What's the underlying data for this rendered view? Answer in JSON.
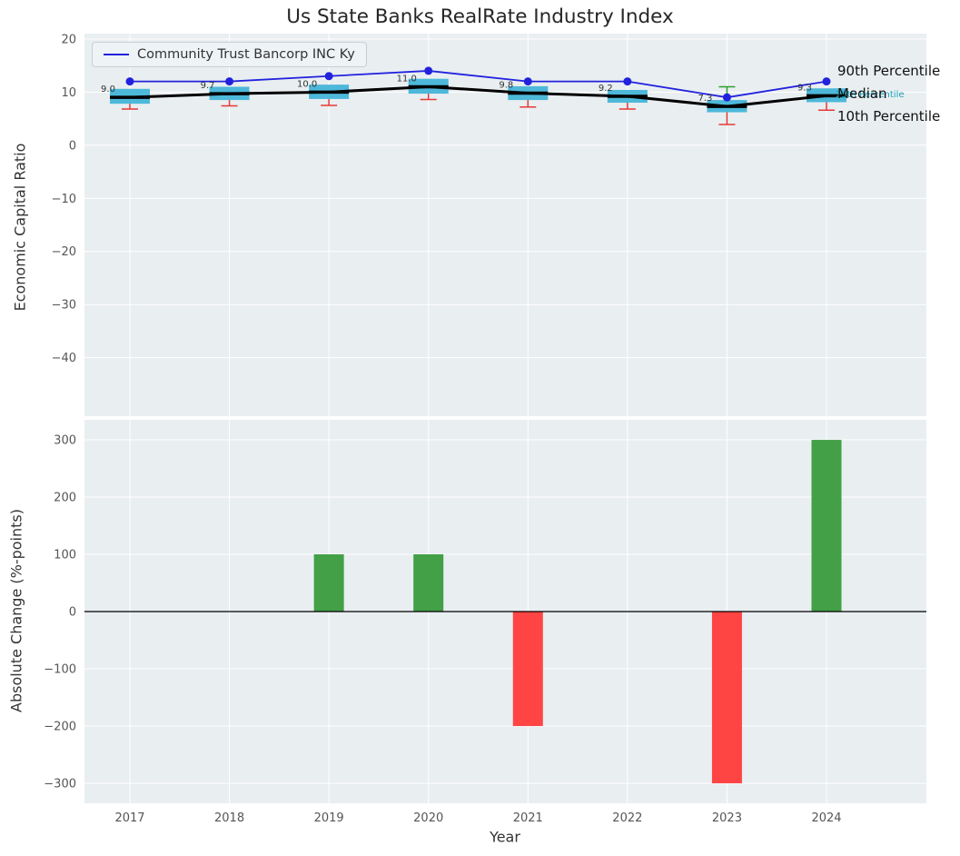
{
  "title": "Us State Banks RealRate Industry Index",
  "legend": {
    "company_label": "Community Trust Bancorp INC Ky"
  },
  "right_labels": {
    "p90": "90th Percentile",
    "p25": "25th Percentile",
    "median": "Median",
    "p10": "10th Percentile"
  },
  "colors": {
    "axes_bg": "#e9eef1",
    "grid": "#ffffff",
    "box_fill": "#4db8d9",
    "median_line": "#000000",
    "company_line": "#2222dd",
    "whisker_low": "#e53935",
    "whisker_high": "#2ca02c",
    "bar_positive": "#43a047",
    "bar_negative": "#ff4444",
    "p25_label": "#17a2b8",
    "tick_text": "#555555",
    "annotation_text": "#333333"
  },
  "chart_data": [
    {
      "type": "boxplot+line",
      "ylabel": "Economic Capital Ratio",
      "ylim": [
        -51,
        21
      ],
      "yticks": [
        20,
        10,
        0,
        -10,
        -20,
        -30,
        -40
      ],
      "grid": true,
      "legend_position": "upper left",
      "categories": [
        "2017",
        "2018",
        "2019",
        "2020",
        "2021",
        "2022",
        "2023",
        "2024"
      ],
      "series": [
        {
          "name": "Community Trust Bancorp INC Ky",
          "type": "line",
          "values": [
            12,
            12,
            13,
            14,
            12,
            12,
            9,
            12
          ]
        },
        {
          "name": "Median",
          "type": "line",
          "values": [
            9.0,
            9.7,
            10.0,
            11.0,
            9.8,
            9.2,
            7.3,
            9.3
          ]
        }
      ],
      "box": {
        "q1": [
          7.8,
          8.5,
          8.7,
          9.7,
          8.5,
          8.0,
          6.2,
          8.1
        ],
        "q3": [
          10.6,
          11.0,
          11.4,
          12.5,
          11.1,
          10.4,
          8.5,
          10.7
        ],
        "whisker_low": [
          6.8,
          7.4,
          7.5,
          8.6,
          7.2,
          6.8,
          3.9,
          6.6
        ],
        "whisker_high": [
          10.6,
          11.0,
          11.4,
          12.5,
          11.1,
          10.4,
          11.0,
          10.7
        ]
      },
      "annotations": [
        "9.0",
        "9.7",
        "10.0",
        "11.0",
        "9.8",
        "9.2",
        "7.3",
        "9.3"
      ]
    },
    {
      "type": "bar",
      "xlabel": "Year",
      "ylabel": "Absolute Change (%-points)",
      "ylim": [
        -335,
        335
      ],
      "yticks": [
        300,
        200,
        100,
        0,
        -100,
        -200,
        -300
      ],
      "grid": true,
      "categories": [
        "2017",
        "2018",
        "2019",
        "2020",
        "2021",
        "2022",
        "2023",
        "2024"
      ],
      "values": [
        0,
        0,
        100,
        100,
        -200,
        0,
        -300,
        300
      ]
    }
  ]
}
